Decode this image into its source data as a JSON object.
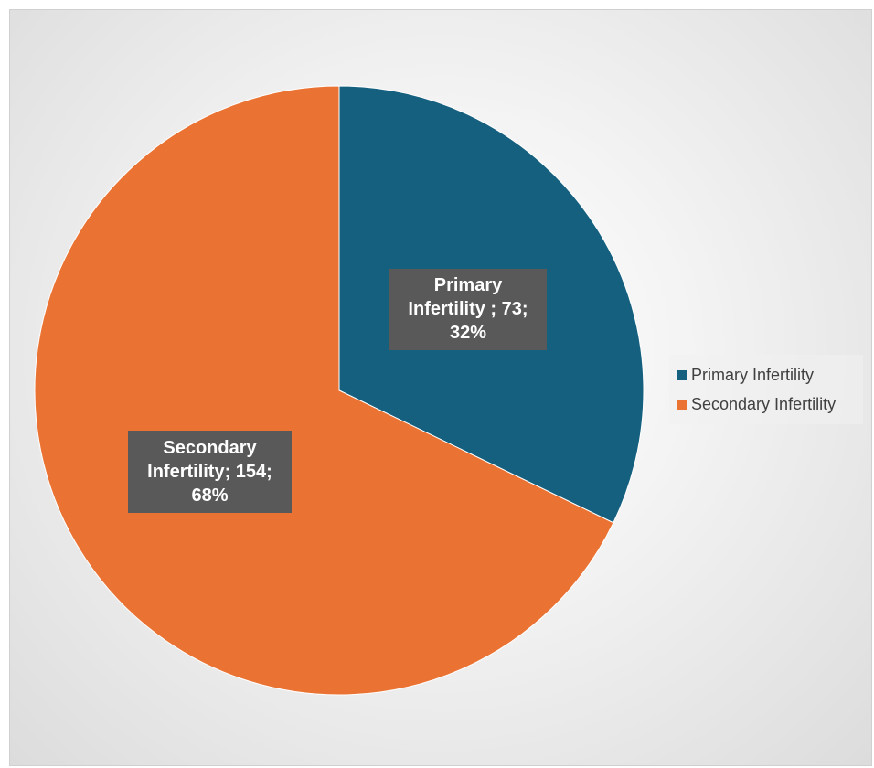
{
  "chart_data": {
    "type": "pie",
    "categories": [
      "Primary Infertility",
      "Secondary Infertility"
    ],
    "values": [
      73,
      154
    ],
    "percentages": [
      "32%",
      "68%"
    ],
    "colors": [
      "#16607f",
      "#ea7333"
    ],
    "data_labels": [
      "Primary\nInfertility ; 73;\n32%",
      "Secondary\nInfertility; 154;\n68%"
    ],
    "legend": {
      "position": "right",
      "entries": [
        "Primary Infertility",
        "Secondary Infertility"
      ]
    }
  }
}
